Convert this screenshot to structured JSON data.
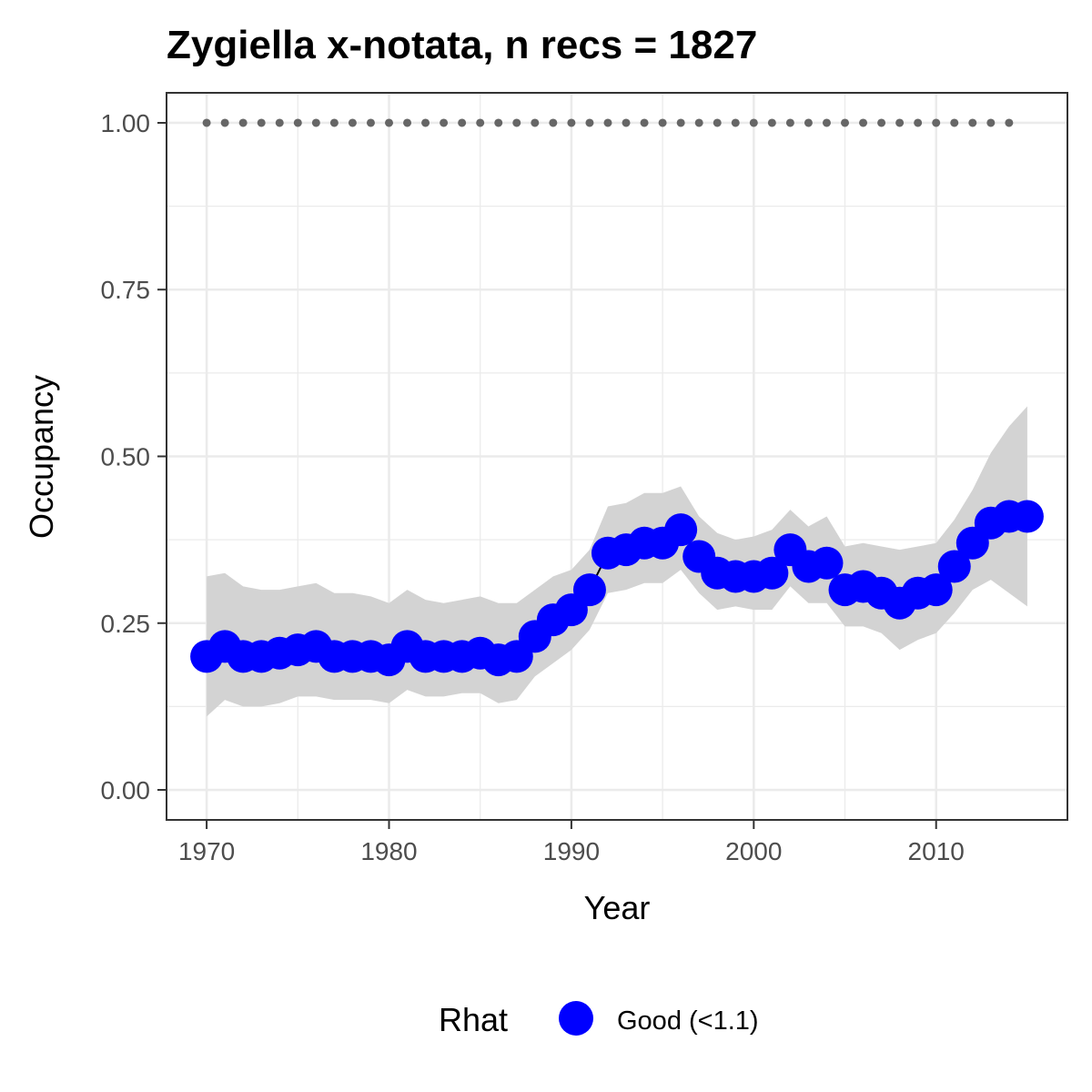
{
  "chart_data": {
    "type": "line",
    "title": "Zygiella x-notata, n recs = 1827",
    "xlabel": "Year",
    "ylabel": "Occupancy",
    "xlim": [
      1967.8,
      2017.2
    ],
    "ylim": [
      -0.045,
      1.045
    ],
    "x_ticks": [
      1970,
      1980,
      1990,
      2000,
      2010
    ],
    "x_tick_labels": [
      "1970",
      "1980",
      "1990",
      "2000",
      "2010"
    ],
    "y_ticks": [
      0,
      0.25,
      0.5,
      0.75,
      1.0
    ],
    "y_tick_labels": [
      "0.00",
      "0.25",
      "0.50",
      "0.75",
      "1.00"
    ],
    "grid": true,
    "legend": {
      "title": "Rhat",
      "position": "bottom",
      "entries": [
        {
          "label": "Good (<1.1)",
          "color": "#0000ff"
        }
      ]
    },
    "colors": {
      "points": "#0000ff",
      "ribbon": "#d3d3d3",
      "reference_line": "#666666",
      "grid": "#ebebeb",
      "panel_border": "#333333"
    },
    "reference_line": {
      "y": 1.0,
      "x_start": 1970,
      "x_end": 2014,
      "style": "dotted"
    },
    "series": [
      {
        "name": "Good (<1.1)",
        "x": [
          1970,
          1971,
          1972,
          1973,
          1974,
          1975,
          1976,
          1977,
          1978,
          1979,
          1980,
          1981,
          1982,
          1983,
          1984,
          1985,
          1986,
          1987,
          1988,
          1989,
          1990,
          1991,
          1992,
          1993,
          1994,
          1995,
          1996,
          1997,
          1998,
          1999,
          2000,
          2001,
          2002,
          2003,
          2004,
          2005,
          2006,
          2007,
          2008,
          2009,
          2010,
          2011,
          2012,
          2013,
          2014,
          2015
        ],
        "values": [
          0.2,
          0.215,
          0.2,
          0.2,
          0.205,
          0.21,
          0.215,
          0.2,
          0.2,
          0.2,
          0.195,
          0.215,
          0.2,
          0.2,
          0.2,
          0.205,
          0.195,
          0.2,
          0.23,
          0.255,
          0.27,
          0.3,
          0.355,
          0.36,
          0.37,
          0.37,
          0.39,
          0.35,
          0.325,
          0.32,
          0.32,
          0.325,
          0.36,
          0.335,
          0.34,
          0.3,
          0.305,
          0.295,
          0.28,
          0.295,
          0.3,
          0.335,
          0.37,
          0.4,
          0.41,
          0.41
        ],
        "lower": [
          0.11,
          0.135,
          0.125,
          0.125,
          0.13,
          0.14,
          0.14,
          0.135,
          0.135,
          0.135,
          0.13,
          0.15,
          0.14,
          0.14,
          0.145,
          0.145,
          0.13,
          0.135,
          0.17,
          0.19,
          0.21,
          0.24,
          0.295,
          0.3,
          0.31,
          0.31,
          0.33,
          0.295,
          0.27,
          0.275,
          0.27,
          0.27,
          0.305,
          0.28,
          0.28,
          0.245,
          0.245,
          0.235,
          0.21,
          0.225,
          0.235,
          0.265,
          0.3,
          0.315,
          0.295,
          0.275
        ],
        "upper": [
          0.32,
          0.325,
          0.305,
          0.3,
          0.3,
          0.305,
          0.31,
          0.295,
          0.295,
          0.29,
          0.28,
          0.3,
          0.285,
          0.28,
          0.285,
          0.29,
          0.28,
          0.28,
          0.3,
          0.32,
          0.33,
          0.36,
          0.425,
          0.43,
          0.445,
          0.445,
          0.455,
          0.41,
          0.385,
          0.375,
          0.38,
          0.39,
          0.42,
          0.395,
          0.41,
          0.365,
          0.37,
          0.365,
          0.36,
          0.365,
          0.37,
          0.405,
          0.45,
          0.505,
          0.545,
          0.575
        ]
      }
    ]
  }
}
